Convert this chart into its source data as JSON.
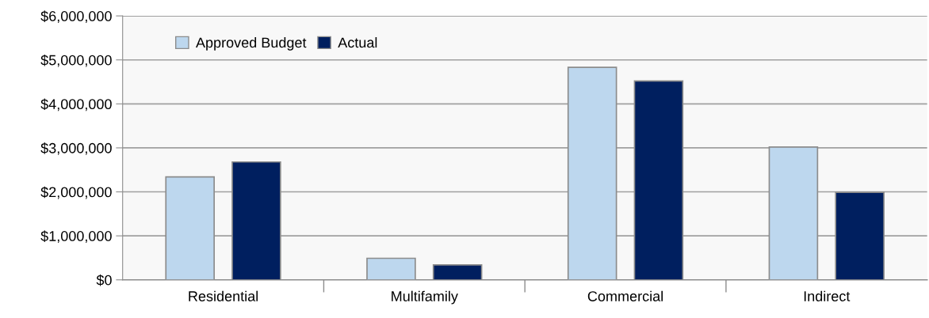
{
  "chart_data": {
    "type": "bar",
    "categories": [
      "Residential",
      "Multifamily",
      "Commercial",
      "Indirect"
    ],
    "series": [
      {
        "name": "Approved Budget",
        "color": "#bdd7ee",
        "values": [
          2340000,
          490000,
          4830000,
          3020000
        ]
      },
      {
        "name": "Actual",
        "color": "#001f5f",
        "values": [
          2680000,
          340000,
          4520000,
          1990000
        ]
      }
    ],
    "ylim": [
      0,
      6000000
    ],
    "yticks": [
      {
        "value": 0,
        "label": "$0"
      },
      {
        "value": 1000000,
        "label": "$1,000,000"
      },
      {
        "value": 2000000,
        "label": "$2,000,000"
      },
      {
        "value": 3000000,
        "label": "$3,000,000"
      },
      {
        "value": 4000000,
        "label": "$4,000,000"
      },
      {
        "value": 5000000,
        "label": "$5,000,000"
      },
      {
        "value": 6000000,
        "label": "$6,000,000"
      }
    ],
    "grid": "y",
    "legend": "top left"
  }
}
